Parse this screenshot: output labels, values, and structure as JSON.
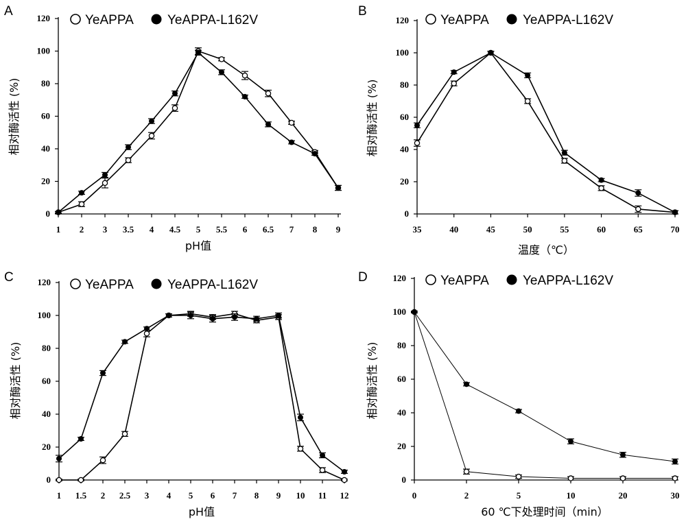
{
  "chart_data": [
    {
      "panel": "A",
      "type": "line",
      "x_kind": "category",
      "categories": [
        "1",
        "2",
        "3",
        "3.5",
        "4",
        "4.5",
        "5",
        "5.5",
        "6",
        "6.5",
        "7",
        "8",
        "9"
      ],
      "xlabel": "pH值",
      "ylabel": "相对酶活性 (%)",
      "yticks": [
        "0",
        "20",
        "40",
        "60",
        "80",
        "100",
        "120"
      ],
      "ylim": [
        0,
        120
      ],
      "legend": "top-left",
      "series": [
        {
          "name": "YeAPPA",
          "marker": "open",
          "values": [
            1,
            6,
            19,
            33,
            48,
            65,
            100,
            95,
            85,
            74,
            56,
            38,
            16
          ],
          "errors": [
            0.5,
            1.5,
            3,
            1.5,
            2,
            2,
            2,
            1,
            2.5,
            2,
            1,
            1,
            1.5
          ]
        },
        {
          "name": "YeAPPA-L162V",
          "marker": "filled",
          "values": [
            1,
            13,
            24,
            41,
            57,
            74,
            99,
            87,
            72,
            55,
            44,
            37,
            16
          ],
          "errors": [
            0.5,
            1,
            1.5,
            1.5,
            1.5,
            1.5,
            1.5,
            1.5,
            1,
            1.5,
            1,
            1,
            1.5
          ]
        }
      ]
    },
    {
      "panel": "B",
      "type": "line",
      "x_kind": "category",
      "categories": [
        "35",
        "40",
        "45",
        "50",
        "55",
        "60",
        "65",
        "70"
      ],
      "xlabel": "温度（℃）",
      "ylabel": "相对酶活性 (%)",
      "yticks": [
        "0",
        "20",
        "40",
        "60",
        "80",
        "100",
        "120"
      ],
      "ylim": [
        0,
        120
      ],
      "legend": "top-left",
      "series": [
        {
          "name": "YeAPPA",
          "marker": "open",
          "values": [
            44,
            81,
            100,
            70,
            33,
            16,
            3,
            1
          ],
          "errors": [
            2,
            1.5,
            1,
            1.5,
            1.5,
            1.5,
            2,
            1
          ]
        },
        {
          "name": "YeAPPA-L162V",
          "marker": "filled",
          "values": [
            55,
            88,
            100,
            86,
            38,
            21,
            13,
            1
          ],
          "errors": [
            1.5,
            1,
            1,
            1.5,
            1.5,
            1,
            2,
            1
          ]
        }
      ]
    },
    {
      "panel": "C",
      "type": "line",
      "x_kind": "category",
      "categories": [
        "1",
        "1.5",
        "2",
        "2.5",
        "3",
        "4",
        "5",
        "6",
        "7",
        "8",
        "9",
        "10",
        "11",
        "12"
      ],
      "xlabel": "pH值",
      "ylabel": "相对酶活性 (%)",
      "yticks": [
        "0",
        "20",
        "40",
        "60",
        "80",
        "100",
        "120"
      ],
      "ylim": [
        0,
        120
      ],
      "legend": "top-left",
      "series": [
        {
          "name": "YeAPPA",
          "marker": "open",
          "values": [
            0,
            0,
            12,
            28,
            89,
            100,
            101,
            99,
            101,
            97,
            99,
            19,
            6,
            0
          ],
          "errors": [
            0.5,
            0.5,
            2,
            1.5,
            2,
            1,
            1.5,
            1.5,
            1.5,
            1.5,
            1.5,
            1.5,
            1.5,
            0.5
          ]
        },
        {
          "name": "YeAPPA-L162V",
          "marker": "filled",
          "values": [
            13,
            25,
            65,
            84,
            92,
            100,
            100,
            98,
            99,
            98,
            100,
            38,
            15,
            5
          ],
          "errors": [
            2,
            1,
            1.5,
            1,
            1,
            1,
            2,
            2,
            2,
            1.5,
            1.5,
            2,
            1.5,
            1
          ]
        }
      ]
    },
    {
      "panel": "D",
      "type": "line",
      "x_kind": "category",
      "categories": [
        "0",
        "2",
        "5",
        "10",
        "20",
        "30"
      ],
      "xlabel": "60 ℃下处理时间（min）",
      "ylabel": "相对酶活性 (%)",
      "yticks": [
        "0",
        "20",
        "40",
        "60",
        "80",
        "100",
        "120"
      ],
      "ylim": [
        0,
        120
      ],
      "legend": "top-left",
      "series": [
        {
          "name": "YeAPPA",
          "marker": "open",
          "values": [
            100,
            5,
            2,
            1,
            1,
            1
          ],
          "errors": [
            0.5,
            1.5,
            1,
            1,
            1,
            1
          ]
        },
        {
          "name": "YeAPPA-L162V",
          "marker": "filled",
          "values": [
            100,
            57,
            41,
            23,
            15,
            11
          ],
          "errors": [
            0.5,
            1,
            1,
            1.5,
            1.5,
            1.5
          ]
        }
      ]
    }
  ]
}
